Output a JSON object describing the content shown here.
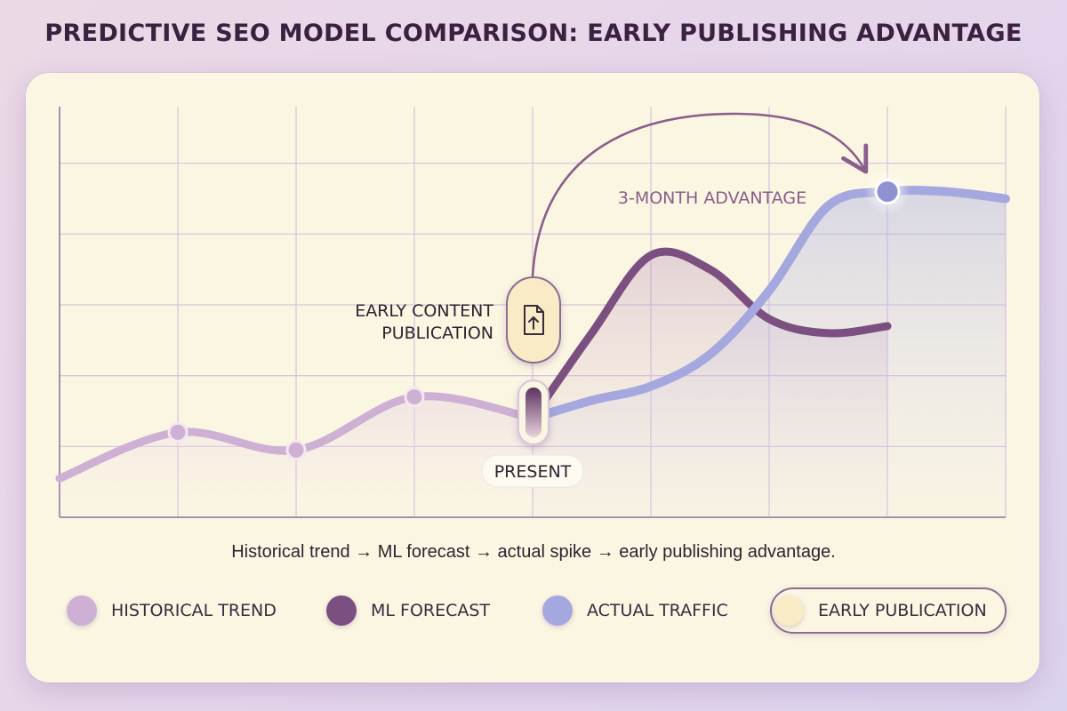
{
  "header": {
    "title": "PREDICTIVE SEO MODEL COMPARISON: EARLY PUBLISHING ADVANTAGE"
  },
  "caption": "Historical trend → ML forecast → actual spike → early publishing advantage.",
  "colors": {
    "historical": "#cdb0d3",
    "forecast": "#7b4f80",
    "actual": "#a4a8de",
    "publication": "#f8ebc6",
    "grid": "#d9c4e0",
    "arrow": "#8a5d8a"
  },
  "annotations": {
    "publication_label_line1": "EARLY CONTENT",
    "publication_label_line2": "PUBLICATION",
    "advantage_label": "3-MONTH ADVANTAGE",
    "present_label": "PRESENT",
    "publication_icon": "document-upload-icon"
  },
  "legend": [
    {
      "label": "HISTORICAL TREND",
      "color": "#cdb0d3"
    },
    {
      "label": "ML FORECAST",
      "color": "#7b4f80"
    },
    {
      "label": "ACTUAL TRAFFIC",
      "color": "#a4a8de"
    },
    {
      "label": "EARLY PUBLICATION",
      "color": "#f8ebc6"
    }
  ],
  "chart_data": {
    "type": "line",
    "title": "PREDICTIVE SEO MODEL COMPARISON: EARLY PUBLISHING ADVANTAGE",
    "xlabel": "",
    "ylabel": "",
    "xlim": [
      0,
      8
    ],
    "ylim": [
      0,
      5.8
    ],
    "grid": true,
    "legend_position": "bottom",
    "series": [
      {
        "name": "HISTORICAL TREND",
        "x": [
          0,
          1,
          2,
          3,
          4
        ],
        "y": [
          0.55,
          1.2,
          0.95,
          1.7,
          1.4
        ]
      },
      {
        "name": "ML FORECAST",
        "x": [
          4,
          4.5,
          5,
          5.5,
          6,
          6.5,
          7
        ],
        "y": [
          1.4,
          2.6,
          3.7,
          3.5,
          2.8,
          2.6,
          2.7
        ]
      },
      {
        "name": "ACTUAL TRAFFIC",
        "x": [
          4,
          4.5,
          5,
          5.5,
          6,
          6.5,
          7,
          7.5,
          8
        ],
        "y": [
          1.4,
          1.65,
          1.85,
          2.3,
          3.2,
          4.4,
          4.6,
          4.6,
          4.5
        ]
      }
    ],
    "markers": [
      {
        "series": "HISTORICAL TREND",
        "x": 1,
        "y": 1.2
      },
      {
        "series": "HISTORICAL TREND",
        "x": 2,
        "y": 0.95
      },
      {
        "series": "HISTORICAL TREND",
        "x": 3,
        "y": 1.7
      },
      {
        "series": "ACTUAL TRAFFIC",
        "x": 7,
        "y": 4.6
      }
    ],
    "present_x": 4,
    "early_publication_x": 4,
    "advantage_target_x": 7
  }
}
